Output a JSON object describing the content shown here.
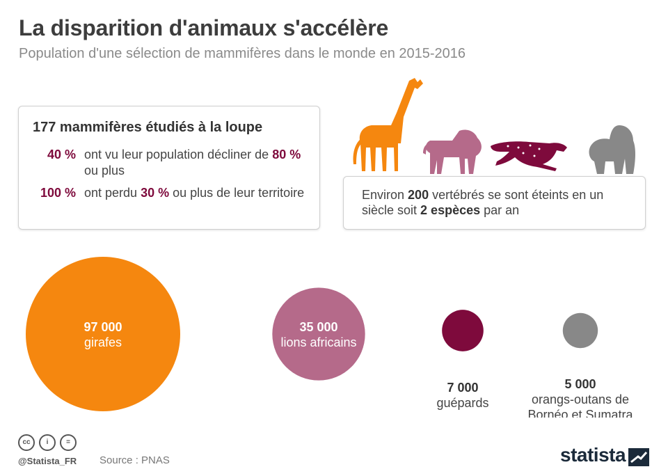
{
  "header": {
    "title": "La disparition d'animaux s'accélère",
    "subtitle": "Population d'une sélection de mammifères dans le monde en 2015-2016"
  },
  "info_box": {
    "heading": "177 mammifères étudiés à la loupe",
    "rows": [
      {
        "pct": "40 %",
        "text_before": "ont vu leur population décliner de ",
        "highlight": "80 %",
        "text_after": " ou plus"
      },
      {
        "pct": "100 %",
        "text_before": "ont perdu ",
        "highlight": "30 %",
        "text_after": " ou plus de leur territoire"
      }
    ]
  },
  "note_box": {
    "t1": "Environ ",
    "b1": "200",
    "t2": " vertébrés se sont éteints en un siècle soit ",
    "b2": "2 espèces",
    "t3": " par an"
  },
  "chart_data": {
    "type": "bubble",
    "title": "La disparition d'animaux s'accélère",
    "subtitle": "Population d'une sélection de mammifères dans le monde en 2015-2016",
    "categories": [
      "girafes",
      "lions africains",
      "guépards",
      "orangs-outans de Bornéo et Sumatra"
    ],
    "values": [
      97000,
      35000,
      7000,
      5000
    ],
    "value_labels": [
      "97 000",
      "35 000",
      "7 000",
      "5 000"
    ],
    "label_lines": [
      [
        "girafes"
      ],
      [
        "lions africains"
      ],
      [
        "guépards"
      ],
      [
        "orangs-outans de",
        "Bornéo et Sumatra"
      ]
    ],
    "colors": [
      "#f5870f",
      "#b56a8a",
      "#7e0a3c",
      "#888888"
    ]
  },
  "colors": {
    "accent": "#7e0a3c",
    "giraffe": "#f5870f",
    "lion": "#b56a8a",
    "cheetah": "#7e0a3c",
    "gorilla": "#888888"
  },
  "footer": {
    "handle": "@Statista_FR",
    "source": "Source : PNAS",
    "brand": "statista"
  },
  "icons": [
    "giraffe-icon",
    "lion-icon",
    "cheetah-icon",
    "gorilla-icon",
    "cc-icon",
    "by-icon",
    "nd-icon",
    "statista-logo-icon"
  ]
}
